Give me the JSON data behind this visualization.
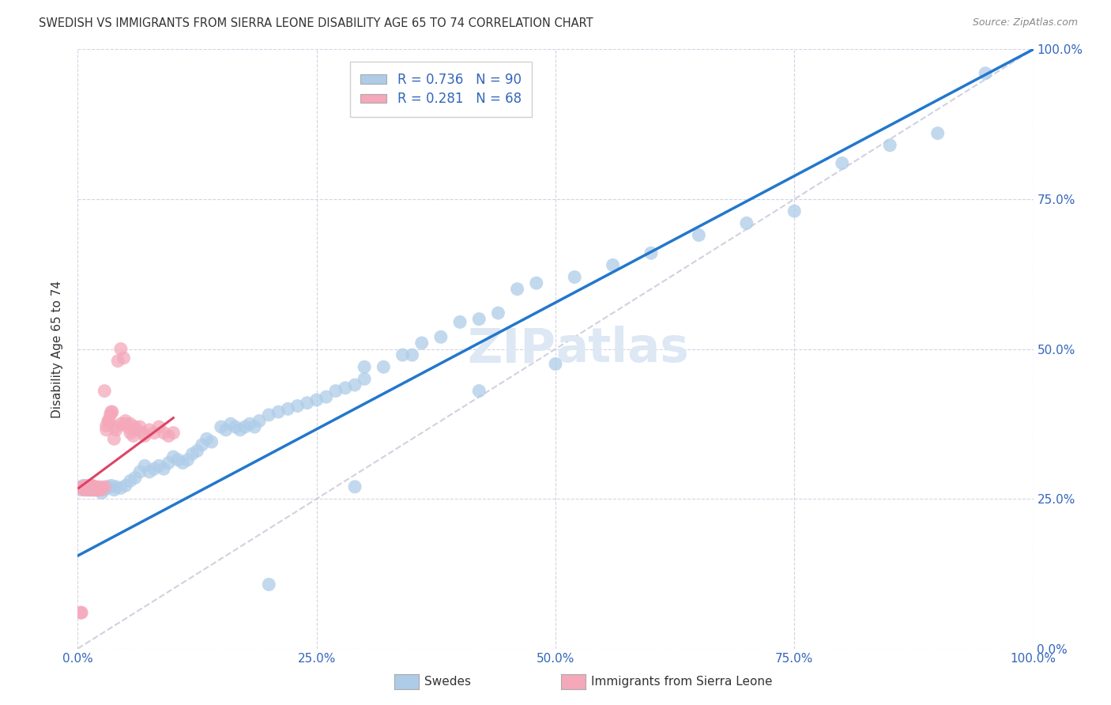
{
  "title": "SWEDISH VS IMMIGRANTS FROM SIERRA LEONE DISABILITY AGE 65 TO 74 CORRELATION CHART",
  "source": "Source: ZipAtlas.com",
  "ylabel": "Disability Age 65 to 74",
  "legend_swedes": "Swedes",
  "legend_immigrants": "Immigrants from Sierra Leone",
  "r_swedes": 0.736,
  "n_swedes": 90,
  "r_immigrants": 0.281,
  "n_immigrants": 68,
  "swedes_color": "#aecce8",
  "immigrants_color": "#f4a8ba",
  "trend_swedes_color": "#2277cc",
  "trend_immigrants_color": "#dd4466",
  "diagonal_color": "#ccccdd",
  "background_color": "#ffffff",
  "title_color": "#333333",
  "right_axis_color": "#3366bb",
  "watermark_color": "#dde8f4",
  "xlim": [
    0,
    1
  ],
  "ylim": [
    0,
    1
  ],
  "swedes_x": [
    0.003,
    0.004,
    0.005,
    0.006,
    0.007,
    0.008,
    0.009,
    0.01,
    0.011,
    0.012,
    0.013,
    0.014,
    0.015,
    0.016,
    0.017,
    0.018,
    0.02,
    0.022,
    0.025,
    0.028,
    0.03,
    0.032,
    0.035,
    0.038,
    0.04,
    0.045,
    0.05,
    0.055,
    0.06,
    0.065,
    0.07,
    0.075,
    0.08,
    0.085,
    0.09,
    0.095,
    0.1,
    0.105,
    0.11,
    0.115,
    0.12,
    0.125,
    0.13,
    0.135,
    0.14,
    0.15,
    0.155,
    0.16,
    0.165,
    0.17,
    0.175,
    0.18,
    0.185,
    0.19,
    0.2,
    0.21,
    0.22,
    0.23,
    0.24,
    0.25,
    0.26,
    0.27,
    0.28,
    0.29,
    0.3,
    0.32,
    0.34,
    0.36,
    0.38,
    0.4,
    0.42,
    0.44,
    0.46,
    0.48,
    0.5,
    0.52,
    0.56,
    0.6,
    0.65,
    0.7,
    0.75,
    0.8,
    0.85,
    0.9,
    0.95,
    0.3,
    0.35,
    0.42,
    0.29,
    0.2
  ],
  "swedes_y": [
    0.265,
    0.27,
    0.268,
    0.272,
    0.265,
    0.27,
    0.268,
    0.265,
    0.27,
    0.265,
    0.268,
    0.272,
    0.265,
    0.268,
    0.27,
    0.265,
    0.268,
    0.265,
    0.26,
    0.265,
    0.268,
    0.27,
    0.272,
    0.265,
    0.27,
    0.268,
    0.272,
    0.28,
    0.285,
    0.295,
    0.305,
    0.295,
    0.3,
    0.305,
    0.3,
    0.31,
    0.32,
    0.315,
    0.31,
    0.315,
    0.325,
    0.33,
    0.34,
    0.35,
    0.345,
    0.37,
    0.365,
    0.375,
    0.37,
    0.365,
    0.37,
    0.375,
    0.37,
    0.38,
    0.39,
    0.395,
    0.4,
    0.405,
    0.41,
    0.415,
    0.42,
    0.43,
    0.435,
    0.44,
    0.45,
    0.47,
    0.49,
    0.51,
    0.52,
    0.545,
    0.55,
    0.56,
    0.6,
    0.61,
    0.475,
    0.62,
    0.64,
    0.66,
    0.69,
    0.71,
    0.73,
    0.81,
    0.84,
    0.86,
    0.96,
    0.47,
    0.49,
    0.43,
    0.27,
    0.107
  ],
  "immigrants_x": [
    0.002,
    0.003,
    0.004,
    0.005,
    0.006,
    0.007,
    0.008,
    0.009,
    0.01,
    0.011,
    0.012,
    0.013,
    0.014,
    0.015,
    0.016,
    0.017,
    0.018,
    0.019,
    0.02,
    0.022,
    0.024,
    0.026,
    0.028,
    0.03,
    0.032,
    0.034,
    0.036,
    0.038,
    0.04,
    0.042,
    0.045,
    0.048,
    0.05,
    0.052,
    0.055,
    0.058,
    0.06,
    0.065,
    0.068,
    0.07,
    0.075,
    0.08,
    0.085,
    0.09,
    0.095,
    0.1,
    0.008,
    0.009,
    0.01,
    0.012,
    0.013,
    0.014,
    0.015,
    0.016,
    0.017,
    0.018,
    0.02,
    0.022,
    0.025,
    0.028,
    0.03,
    0.032,
    0.035,
    0.04,
    0.045,
    0.05,
    0.055,
    0.06
  ],
  "immigrants_y": [
    0.268,
    0.06,
    0.06,
    0.268,
    0.27,
    0.265,
    0.268,
    0.27,
    0.265,
    0.27,
    0.268,
    0.265,
    0.27,
    0.268,
    0.265,
    0.27,
    0.265,
    0.268,
    0.265,
    0.27,
    0.265,
    0.268,
    0.43,
    0.365,
    0.38,
    0.39,
    0.395,
    0.35,
    0.365,
    0.48,
    0.5,
    0.485,
    0.375,
    0.37,
    0.36,
    0.355,
    0.365,
    0.37,
    0.36,
    0.355,
    0.365,
    0.36,
    0.37,
    0.36,
    0.355,
    0.36,
    0.27,
    0.272,
    0.268,
    0.27,
    0.265,
    0.268,
    0.272,
    0.268,
    0.265,
    0.27,
    0.268,
    0.265,
    0.268,
    0.27,
    0.372,
    0.38,
    0.395,
    0.37,
    0.375,
    0.38,
    0.375,
    0.37
  ],
  "trend_swedes_x0": 0.0,
  "trend_swedes_y0": 0.155,
  "trend_swedes_x1": 1.0,
  "trend_swedes_y1": 1.0,
  "trend_immigrants_x0": 0.001,
  "trend_immigrants_y0": 0.268,
  "trend_immigrants_x1": 0.1,
  "trend_immigrants_y1": 0.385
}
